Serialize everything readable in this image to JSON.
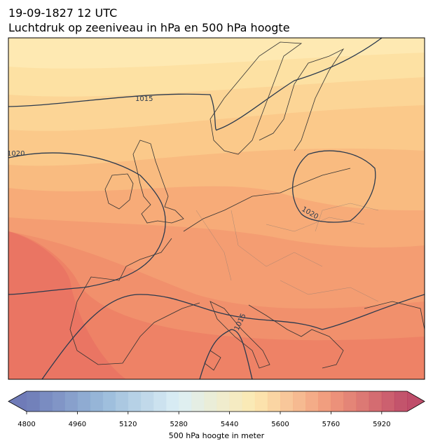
{
  "title": "19-09-1827 12 UTC",
  "subtitle": "Luchtdruk op zeeniveau in hPa en 500 hPa hoogte",
  "isobar_labels": [
    1015,
    1020,
    1020,
    1015
  ],
  "colorbar": {
    "label": "500 hPa hoogte in meter",
    "lim": [
      4800,
      6000
    ],
    "step": 40,
    "ticks": [
      4800,
      4960,
      5120,
      5280,
      5440,
      5600,
      5760,
      5920
    ],
    "colors": [
      "#5f6db0",
      "#8fb3d6",
      "#d9eef4",
      "#fde7a8",
      "#ef8c6c",
      "#b83a5a"
    ]
  }
}
